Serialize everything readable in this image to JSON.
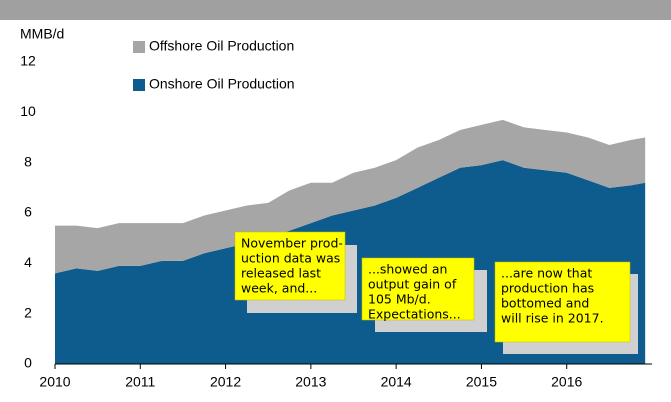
{
  "chart_data": {
    "type": "area",
    "y_axis_label": "MMB/d",
    "x": [
      2010.0,
      2010.25,
      2010.5,
      2010.75,
      2011.0,
      2011.25,
      2011.5,
      2011.75,
      2012.0,
      2012.25,
      2012.5,
      2012.75,
      2013.0,
      2013.25,
      2013.5,
      2013.75,
      2014.0,
      2014.25,
      2014.5,
      2014.75,
      2015.0,
      2015.25,
      2015.5,
      2015.75,
      2016.0,
      2016.25,
      2016.5,
      2016.75,
      2016.92
    ],
    "series": [
      {
        "name": "Onshore Oil Production",
        "color": "#0e5c8e",
        "values": [
          3.6,
          3.8,
          3.7,
          3.9,
          3.9,
          4.1,
          4.1,
          4.4,
          4.6,
          4.8,
          5.0,
          5.3,
          5.6,
          5.9,
          6.1,
          6.3,
          6.6,
          7.0,
          7.4,
          7.8,
          7.9,
          8.1,
          7.8,
          7.7,
          7.6,
          7.3,
          7.0,
          7.1,
          7.2
        ]
      },
      {
        "name": "Offshore Oil Production",
        "color": "#a6a6a6",
        "values": [
          1.9,
          1.7,
          1.7,
          1.7,
          1.7,
          1.5,
          1.5,
          1.5,
          1.5,
          1.5,
          1.4,
          1.6,
          1.6,
          1.3,
          1.5,
          1.5,
          1.5,
          1.6,
          1.5,
          1.5,
          1.6,
          1.6,
          1.6,
          1.6,
          1.6,
          1.7,
          1.7,
          1.8,
          1.8
        ]
      }
    ],
    "stacked": true,
    "xlim": [
      2010,
      2017
    ],
    "xticks": [
      2010,
      2011,
      2012,
      2013,
      2014,
      2015,
      2016
    ],
    "ylim": [
      0,
      12
    ],
    "yticks": [
      0,
      2,
      4,
      6,
      8,
      10,
      12
    ],
    "annotations": [
      {
        "lines": [
          "November prod-",
          "uction data was",
          "released last",
          "week, and..."
        ]
      },
      {
        "lines": [
          "...showed an",
          "output gain of",
          "105 Mb/d.",
          "Expectations..."
        ]
      },
      {
        "lines": [
          "...are now that",
          "production has",
          "bottomed and",
          "will rise in 2017."
        ]
      }
    ]
  }
}
